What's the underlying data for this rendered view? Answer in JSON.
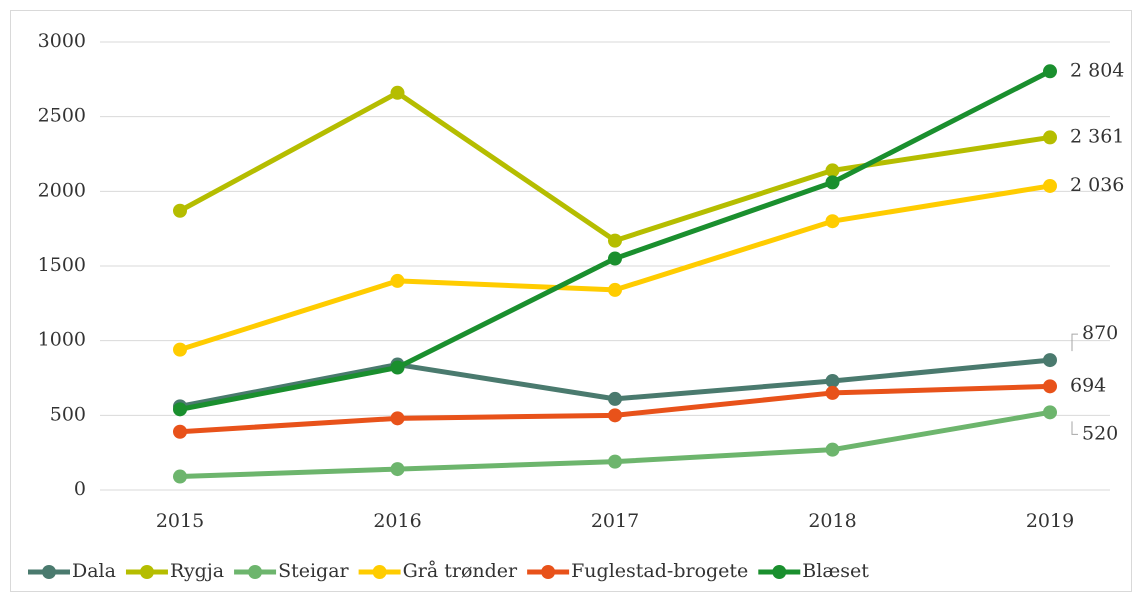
{
  "chart_data": {
    "type": "line",
    "categories": [
      "2015",
      "2016",
      "2017",
      "2018",
      "2019"
    ],
    "series": [
      {
        "name": "Dala",
        "color": "#4a7a6e",
        "values": [
          560,
          840,
          610,
          730,
          870
        ],
        "value_labels": [
          null,
          null,
          null,
          null,
          "870"
        ]
      },
      {
        "name": "Rygja",
        "color": "#b5bd00",
        "values": [
          1870,
          2660,
          1670,
          2140,
          2361
        ],
        "value_labels": [
          null,
          null,
          null,
          null,
          "2 361"
        ]
      },
      {
        "name": "Steigar",
        "color": "#6db56d",
        "values": [
          90,
          140,
          190,
          270,
          520
        ],
        "value_labels": [
          null,
          null,
          null,
          null,
          "520"
        ]
      },
      {
        "name": "Grå trønder",
        "color": "#ffcc00",
        "values": [
          940,
          1400,
          1340,
          1800,
          2036
        ],
        "value_labels": [
          null,
          null,
          null,
          null,
          "2 036"
        ]
      },
      {
        "name": "Fuglestad-brogete",
        "color": "#e8521a",
        "values": [
          390,
          480,
          500,
          650,
          694
        ],
        "value_labels": [
          null,
          null,
          null,
          null,
          "694"
        ]
      },
      {
        "name": "Blæset",
        "color": "#1a8f2e",
        "values": [
          540,
          820,
          1550,
          2060,
          2804
        ],
        "value_labels": [
          null,
          null,
          null,
          null,
          "2 804"
        ]
      }
    ],
    "ylim": [
      0,
      3000
    ],
    "yticks": [
      0,
      500,
      1000,
      1500,
      2000,
      2500,
      3000
    ],
    "grid": true,
    "legend": "bottom"
  }
}
